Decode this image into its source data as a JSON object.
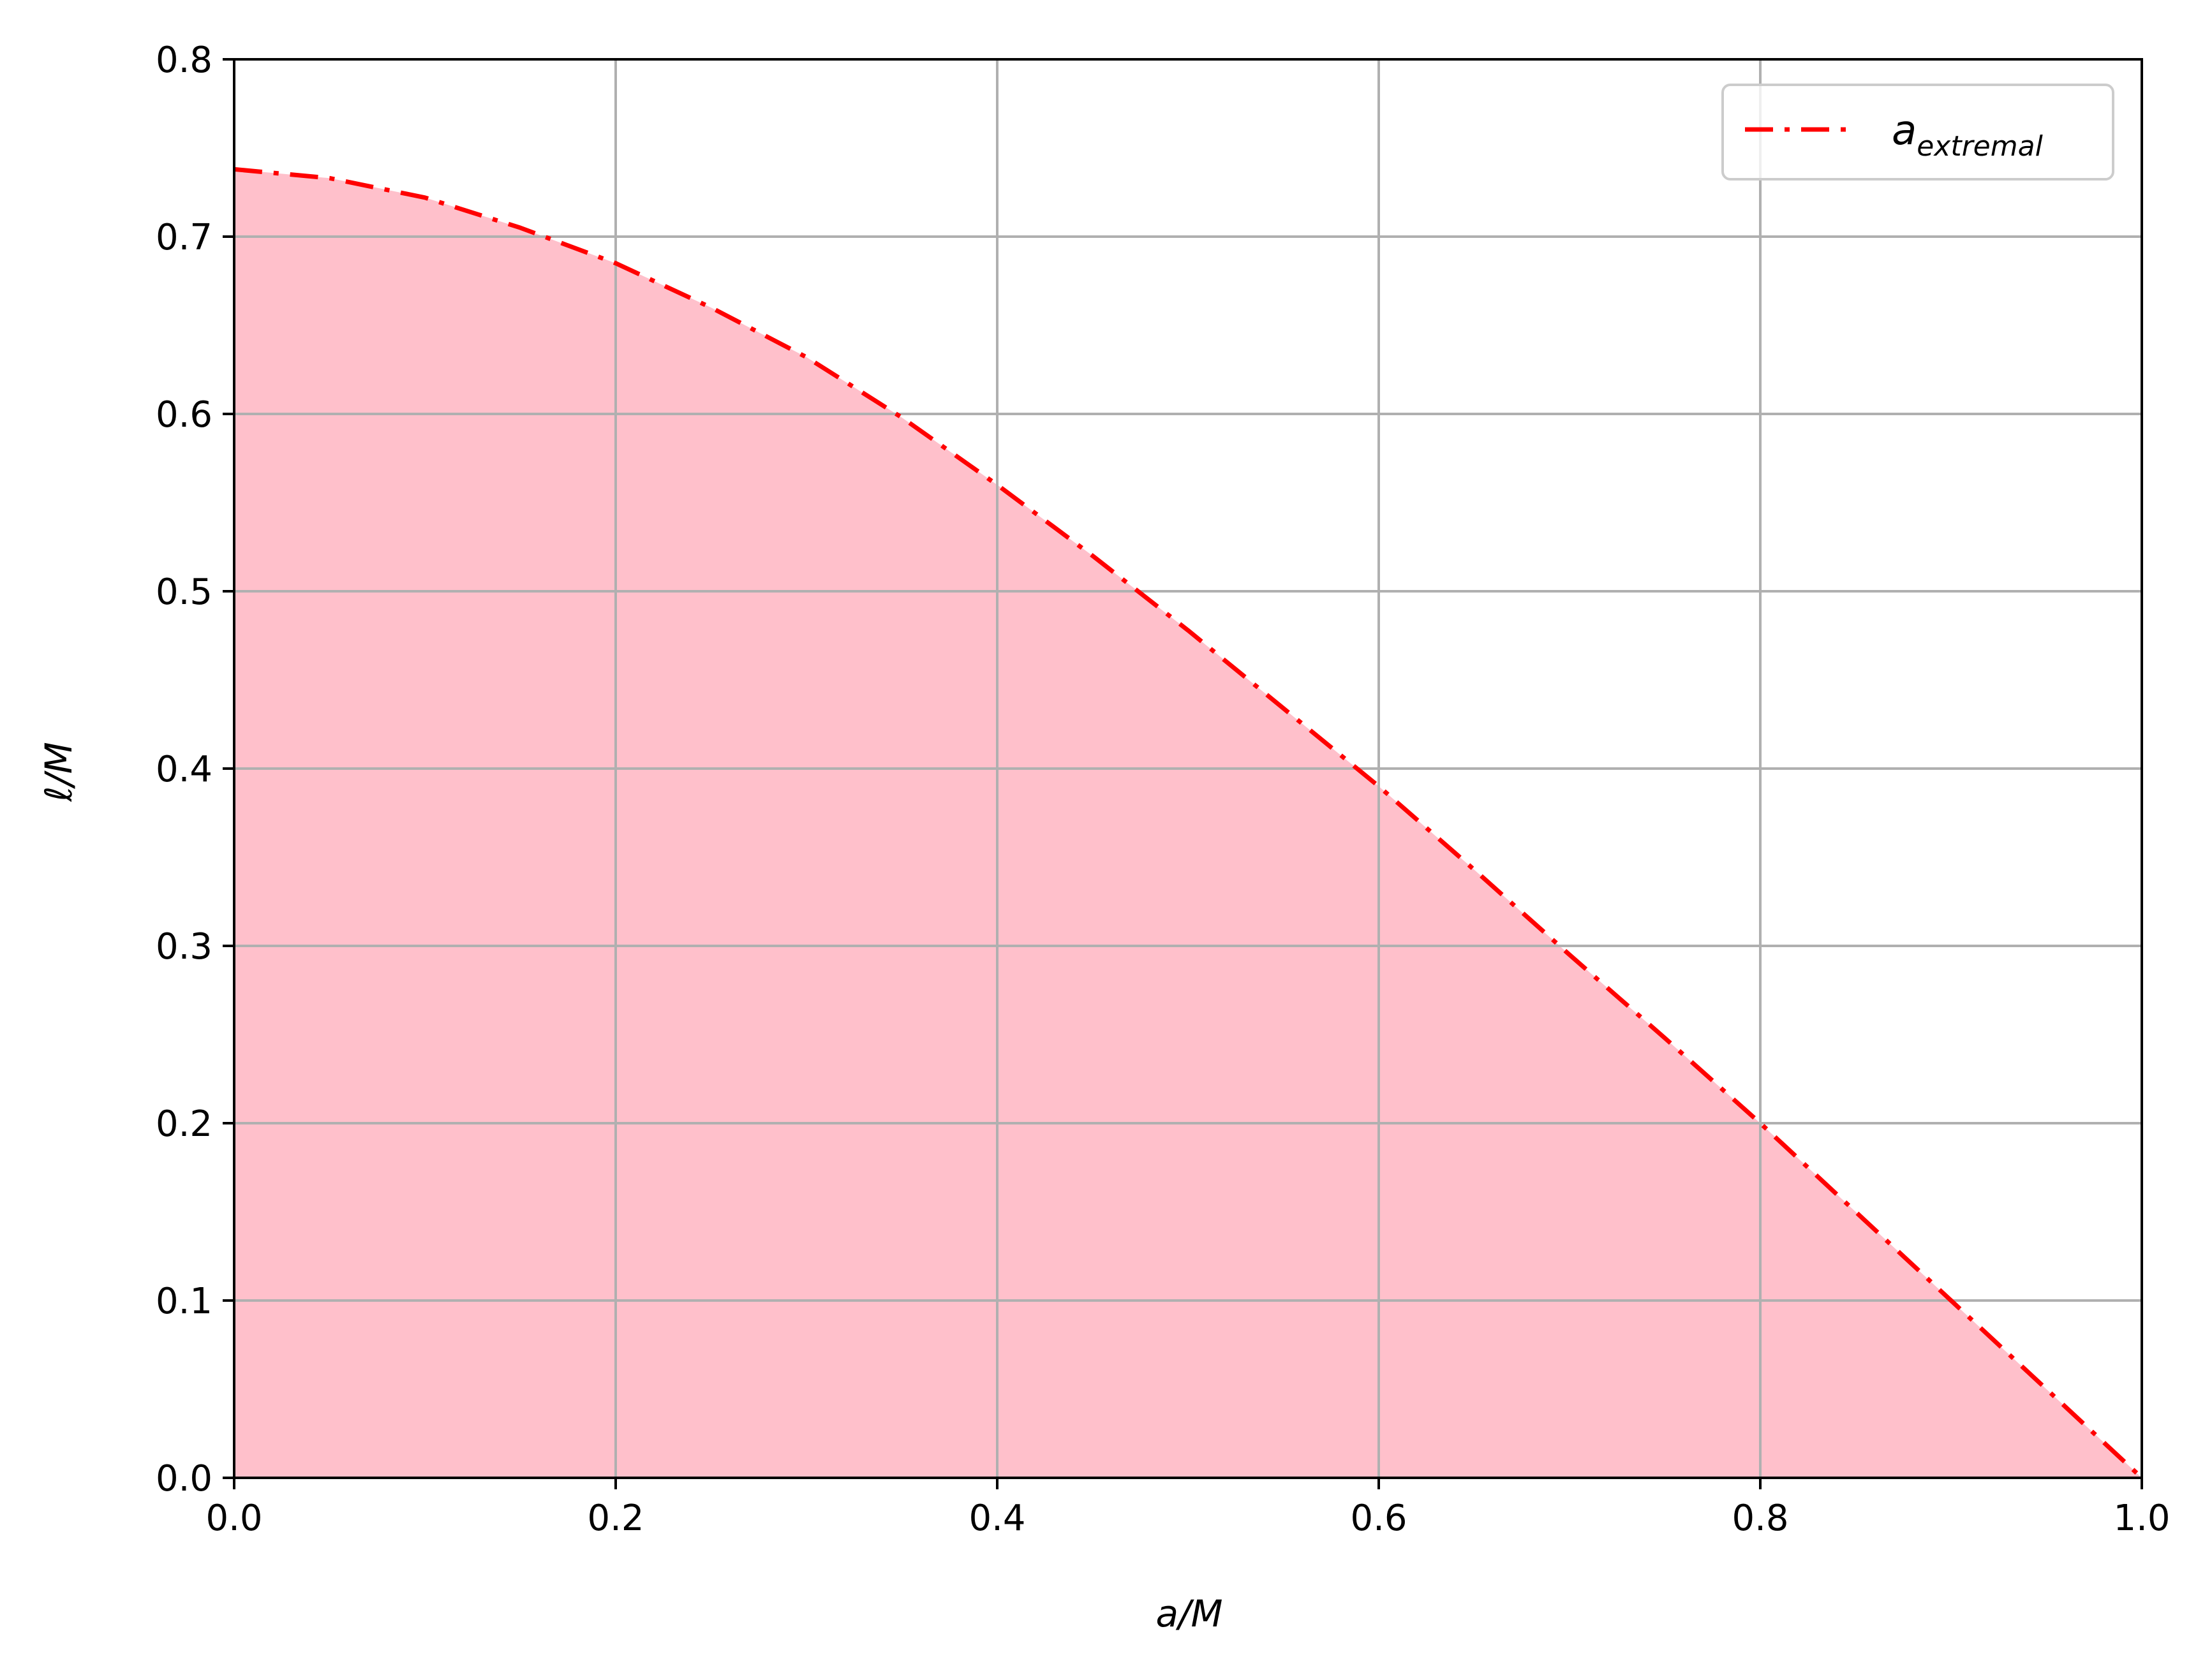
{
  "chart_data": {
    "type": "area",
    "xlabel": "a/M",
    "ylabel": "ℓ/M",
    "xlim": [
      0.0,
      1.0
    ],
    "ylim": [
      0.0,
      0.8
    ],
    "xticks": [
      "0.0",
      "0.2",
      "0.4",
      "0.6",
      "0.8",
      "1.0"
    ],
    "yticks": [
      "0.0",
      "0.1",
      "0.2",
      "0.3",
      "0.4",
      "0.5",
      "0.6",
      "0.7",
      "0.8"
    ],
    "grid": true,
    "legend_position": "top-right",
    "series": [
      {
        "name_main": "a",
        "name_sub": "extremal",
        "line_style": "dash-dot",
        "line_color": "#ff0000",
        "fill_color": "#ffc0cb",
        "x": [
          0.0,
          0.05,
          0.1,
          0.15,
          0.2,
          0.25,
          0.3,
          0.35,
          0.4,
          0.45,
          0.5,
          0.55,
          0.6,
          0.65,
          0.7,
          0.75,
          0.8,
          0.85,
          0.9,
          0.95,
          1.0
        ],
        "y": [
          0.738,
          0.733,
          0.722,
          0.705,
          0.685,
          0.66,
          0.632,
          0.598,
          0.56,
          0.52,
          0.478,
          0.434,
          0.39,
          0.343,
          0.295,
          0.248,
          0.2,
          0.15,
          0.1,
          0.05,
          0.0
        ]
      }
    ]
  }
}
